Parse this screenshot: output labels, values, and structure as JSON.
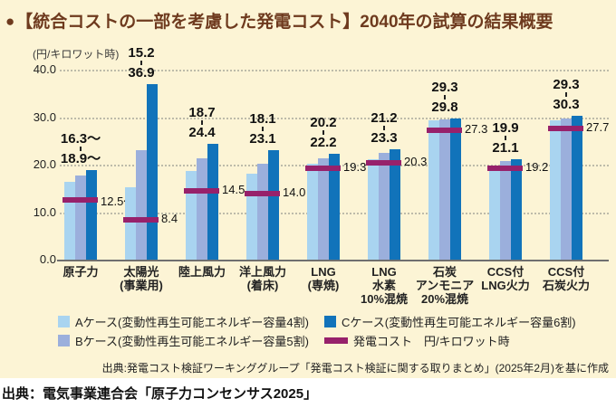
{
  "page": {
    "title_bullet": "●",
    "title": "【統合コストの一部を考慮した発電コスト】2040年の試算の結果概要",
    "source_inner": "出典:発電コスト検証ワーキンググループ「発電コスト検証に関する取りまとめ」(2025年2月)を基に作成",
    "source_outer": "出典：電気事業連合会「原子力コンセンサス2025」"
  },
  "colors": {
    "panel_bg": "#fcf4d5",
    "title_brown": "#6e3a1e",
    "case_a": "#a9d4f0",
    "case_b": "#9bafdc",
    "case_c": "#1173ba",
    "cost_marker": "#97216b"
  },
  "chart_data": {
    "type": "bar",
    "title": "【統合コストの一部を考慮した発電コスト】2040年の試算の結果概要",
    "unit_label": "(円/キロワット時)",
    "ylabel": "円/キロワット時",
    "ylim": [
      0,
      40
    ],
    "y_ticks": [
      0,
      10,
      20,
      30,
      40
    ],
    "grid": "horizontal-dotted",
    "legend_position": "bottom",
    "series": [
      {
        "key": "a",
        "name": "Aケース(変動性再生可能エネルギー容量4割)",
        "color": "#a9d4f0",
        "style": "bar"
      },
      {
        "key": "b",
        "name": "Bケース(変動性再生可能エネルギー容量5割)",
        "color": "#9bafdc",
        "style": "bar"
      },
      {
        "key": "c",
        "name": "Cケース(変動性再生可能エネルギー容量6割)",
        "color": "#1173ba",
        "style": "bar"
      },
      {
        "key": "cost",
        "name": "発電コスト　円/キロワット時",
        "color": "#97216b",
        "style": "marker-line"
      }
    ],
    "groups": [
      {
        "category": [
          "原子力"
        ],
        "values": {
          "a": 16.3,
          "b": 17.8,
          "c": 18.9,
          "cost": 12.5
        },
        "labels": {
          "range_top": "16.3～",
          "range_bottom": "18.9～",
          "cost": "12.5～"
        }
      },
      {
        "category": [
          "太陽光",
          "(事業用)"
        ],
        "values": {
          "a": 15.2,
          "b": 23.0,
          "c": 36.9,
          "cost": 8.4
        },
        "labels": {
          "range_top": "15.2",
          "range_bottom": "36.9",
          "cost": "8.4"
        }
      },
      {
        "category": [
          "陸上風力"
        ],
        "values": {
          "a": 18.7,
          "b": 21.4,
          "c": 24.4,
          "cost": 14.5
        },
        "labels": {
          "range_top": "18.7",
          "range_bottom": "24.4",
          "cost": "14.5"
        }
      },
      {
        "category": [
          "洋上風力",
          "(着床)"
        ],
        "values": {
          "a": 18.1,
          "b": 20.1,
          "c": 23.1,
          "cost": 14.0
        },
        "labels": {
          "range_top": "18.1",
          "range_bottom": "23.1",
          "cost": "14.0"
        }
      },
      {
        "category": [
          "LNG",
          "(専焼)"
        ],
        "values": {
          "a": 20.2,
          "b": 21.4,
          "c": 22.2,
          "cost": 19.3
        },
        "labels": {
          "range_top": "20.2",
          "range_bottom": "22.2",
          "cost": "19.3"
        }
      },
      {
        "category": [
          "LNG",
          "水素",
          "10%混焼"
        ],
        "values": {
          "a": 21.2,
          "b": 22.5,
          "c": 23.3,
          "cost": 20.3
        },
        "labels": {
          "range_top": "21.2",
          "range_bottom": "23.3",
          "cost": "20.3"
        }
      },
      {
        "category": [
          "石炭",
          "アンモニア",
          "20%混焼"
        ],
        "values": {
          "a": 29.3,
          "b": 29.5,
          "c": 29.8,
          "cost": 27.3
        },
        "labels": {
          "range_top": "29.3",
          "range_bottom": "29.8",
          "cost": "27.3"
        }
      },
      {
        "category": [
          "CCS付",
          "LNG火力"
        ],
        "values": {
          "a": 19.9,
          "b": 20.7,
          "c": 21.1,
          "cost": 19.2
        },
        "labels": {
          "range_top": "19.9",
          "range_bottom": "21.1",
          "cost": "19.2"
        }
      },
      {
        "category": [
          "CCS付",
          "石炭火力"
        ],
        "values": {
          "a": 29.3,
          "b": 29.8,
          "c": 30.3,
          "cost": 27.7
        },
        "labels": {
          "range_top": "29.3",
          "range_bottom": "30.3",
          "cost": "27.7"
        }
      }
    ]
  }
}
